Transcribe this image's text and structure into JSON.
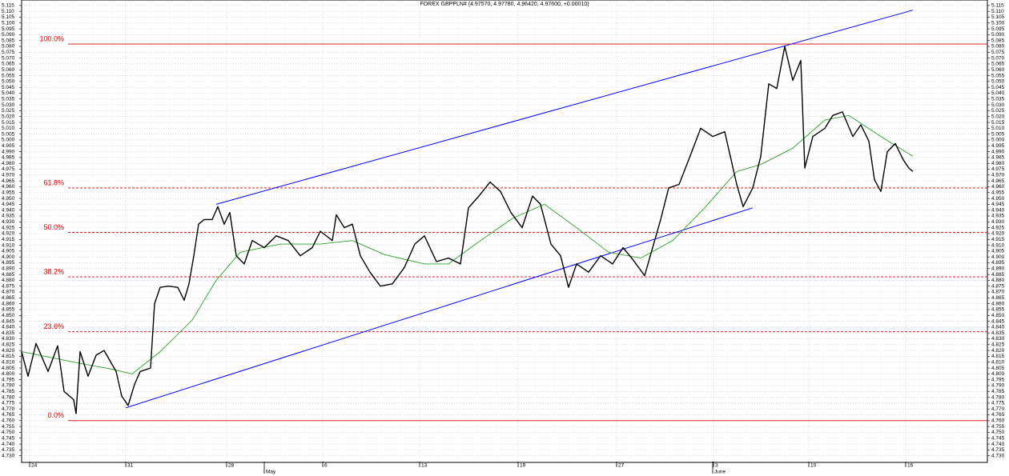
{
  "chart_data": {
    "type": "line",
    "title": "FOREX GBPPLN# (4.97570, 4.97780, 4.96420, 4.97600, +0.00010)",
    "grid": true,
    "xlim": [
      0,
      1206
    ],
    "ylim": [
      4.725,
      5.119
    ],
    "xticks": [
      {
        "value": 10,
        "label": "24"
      },
      {
        "value": 130,
        "label": "31"
      },
      {
        "value": 256,
        "label": "28"
      },
      {
        "value": 376,
        "label": "6"
      },
      {
        "value": 497,
        "label": "13"
      },
      {
        "value": 620,
        "label": "19"
      },
      {
        "value": 743,
        "label": "27"
      },
      {
        "value": 864,
        "label": "3"
      },
      {
        "value": 983,
        "label": "10"
      },
      {
        "value": 1104,
        "label": "16"
      }
    ],
    "month_labels": [
      {
        "value": 303,
        "label": "May"
      },
      {
        "value": 863,
        "label": "June"
      }
    ],
    "yticks": [
      {
        "value": 4.73,
        "label": "4.730"
      },
      4.735,
      {
        "value": 4.74,
        "label": "4.740"
      },
      4.745,
      {
        "value": 4.75,
        "label": "4.750"
      },
      4.755,
      {
        "value": 4.76,
        "label": "4.760"
      },
      4.765,
      {
        "value": 4.77,
        "label": "4.770"
      },
      4.775,
      {
        "value": 4.78,
        "label": "4.780"
      },
      4.785,
      {
        "value": 4.79,
        "label": "4.790"
      },
      4.795,
      {
        "value": 4.8,
        "label": "4.800"
      },
      4.805,
      {
        "value": 4.81,
        "label": "4.810"
      },
      4.815,
      {
        "value": 4.82,
        "label": "4.820"
      },
      4.825,
      {
        "value": 4.83,
        "label": "4.830"
      },
      4.835,
      {
        "value": 4.84,
        "label": "4.840"
      },
      4.845,
      {
        "value": 4.85,
        "label": "4.850"
      },
      4.855,
      {
        "value": 4.86,
        "label": "4.860"
      },
      4.865,
      {
        "value": 4.87,
        "label": "4.870"
      },
      4.875,
      {
        "value": 4.88,
        "label": "4.880"
      },
      4.885,
      {
        "value": 4.89,
        "label": "4.890"
      },
      4.895,
      {
        "value": 4.9,
        "label": "4.900"
      },
      4.905,
      {
        "value": 4.91,
        "label": "4.910"
      },
      4.915,
      {
        "value": 4.92,
        "label": "4.920"
      },
      4.925,
      {
        "value": 4.93,
        "label": "4.930"
      },
      4.935,
      {
        "value": 4.94,
        "label": "4.940"
      },
      4.945,
      {
        "value": 4.95,
        "label": "4.950"
      },
      4.955,
      {
        "value": 4.96,
        "label": "4.960"
      },
      4.965,
      {
        "value": 4.97,
        "label": "4.970"
      },
      4.975,
      {
        "value": 4.98,
        "label": "4.980"
      },
      4.985,
      {
        "value": 4.99,
        "label": "4.990"
      },
      4.995,
      {
        "value": 5.0,
        "label": "5.000"
      },
      5.005,
      {
        "value": 5.01,
        "label": "5.010"
      },
      5.015,
      {
        "value": 5.02,
        "label": "5.020"
      },
      5.025,
      {
        "value": 5.03,
        "label": "5.030"
      },
      5.035,
      {
        "value": 5.04,
        "label": "5.040"
      },
      5.045,
      {
        "value": 5.05,
        "label": "5.050"
      },
      5.055,
      {
        "value": 5.06,
        "label": "5.060"
      },
      5.065,
      {
        "value": 5.07,
        "label": "5.070"
      },
      5.075,
      {
        "value": 5.08,
        "label": "5.080"
      },
      5.085,
      {
        "value": 5.09,
        "label": "5.090"
      },
      5.095,
      {
        "value": 5.1,
        "label": "5.100"
      },
      5.105,
      {
        "value": 5.11,
        "label": "5.110"
      },
      5.115
    ],
    "series": [
      {
        "color": "#000000",
        "x": [
          0,
          8,
          18,
          33,
          45,
          53,
          65,
          68,
          73,
          83,
          93,
          103,
          118,
          125,
          133,
          141,
          148,
          161,
          166,
          173,
          183,
          195,
          203,
          209,
          215,
          221,
          228,
          238,
          245,
          253,
          260,
          268,
          278,
          288,
          303,
          318,
          333,
          348,
          363,
          373,
          388,
          393,
          403,
          413,
          423,
          435,
          448,
          463,
          478,
          491,
          503,
          518,
          533,
          548,
          558,
          571,
          585,
          598,
          611,
          625,
          638,
          648,
          661,
          673,
          683,
          693,
          708,
          723,
          738,
          751,
          763,
          778,
          788,
          798,
          808,
          821,
          833,
          848,
          863,
          878,
          893,
          901,
          913,
          923,
          933,
          943,
          953,
          963,
          973,
          978,
          988,
          1003,
          1013,
          1025,
          1038,
          1048,
          1058,
          1065,
          1073,
          1081,
          1091,
          1101,
          1108,
          1113
        ],
        "values": [
          4.819,
          4.798,
          4.826,
          4.802,
          4.824,
          4.785,
          4.778,
          4.766,
          4.819,
          4.798,
          4.816,
          4.82,
          4.802,
          4.781,
          4.773,
          4.791,
          4.802,
          4.805,
          4.86,
          4.874,
          4.875,
          4.874,
          4.863,
          4.877,
          4.901,
          4.928,
          4.932,
          4.932,
          4.943,
          4.928,
          4.938,
          4.901,
          4.894,
          4.914,
          4.908,
          4.918,
          4.914,
          4.901,
          4.908,
          4.922,
          4.914,
          4.936,
          4.925,
          4.928,
          4.901,
          4.887,
          4.875,
          4.877,
          4.891,
          4.911,
          4.918,
          4.896,
          4.899,
          4.894,
          4.942,
          4.952,
          4.964,
          4.956,
          4.938,
          4.925,
          4.952,
          4.945,
          4.911,
          4.901,
          4.874,
          4.894,
          4.887,
          4.901,
          4.894,
          4.908,
          4.898,
          4.884,
          4.908,
          4.932,
          4.959,
          4.962,
          4.983,
          5.01,
          5.003,
          5.007,
          4.962,
          4.943,
          4.959,
          4.986,
          5.048,
          5.044,
          5.08,
          5.051,
          5.068,
          4.976,
          5.003,
          5.01,
          5.021,
          5.024,
          5.003,
          5.013,
          4.999,
          4.966,
          4.956,
          4.99,
          4.997,
          4.983,
          4.976,
          4.973
        ]
      },
      {
        "color": "#2ca02c",
        "x": [
          0,
          73,
          113,
          138,
          173,
          213,
          243,
          273,
          323,
          373,
          413,
          453,
          503,
          533,
          573,
          613,
          653,
          693,
          733,
          773,
          813,
          853,
          893,
          923,
          963,
          1003,
          1033,
          1073,
          1113
        ],
        "values": [
          4.819,
          4.809,
          4.804,
          4.8,
          4.819,
          4.846,
          4.88,
          4.904,
          4.911,
          4.911,
          4.914,
          4.902,
          4.894,
          4.894,
          4.914,
          4.933,
          4.945,
          4.925,
          4.904,
          4.899,
          4.914,
          4.942,
          4.973,
          4.979,
          4.993,
          5.017,
          5.021,
          5.003,
          4.986
        ]
      }
    ],
    "trend_lines": [
      {
        "color": "#0000ff",
        "x": [
          243,
          1113
        ],
        "values": [
          4.945,
          5.111
        ]
      },
      {
        "color": "#0000ff",
        "x": [
          130,
          913
        ],
        "values": [
          4.771,
          4.942
        ]
      }
    ],
    "levels": [
      {
        "label": "100.0%",
        "value": 5.082,
        "dashed": false
      },
      {
        "label": "61.8%",
        "value": 4.959,
        "dashed": true
      },
      {
        "label": "50.0%",
        "value": 4.921,
        "dashed": true
      },
      {
        "label": "38.2%",
        "value": 4.883,
        "dashed": true
      },
      {
        "label": "23.6%",
        "value": 4.836,
        "dashed": true
      },
      {
        "label": "0.0%",
        "value": 4.76,
        "dashed": false
      }
    ],
    "level_color": "#e00000"
  }
}
